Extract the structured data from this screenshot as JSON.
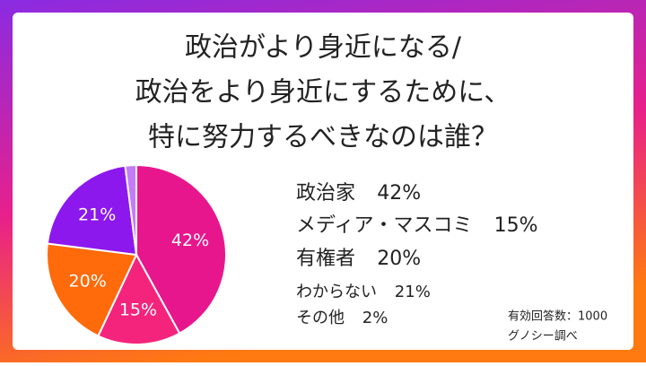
{
  "chart_data": {
    "type": "pie",
    "title_lines": [
      "政治がより身近になる/",
      "政治をより身近にするために、",
      "特に努力するべきなのは誰？"
    ],
    "categories": [
      "政治家",
      "メディア・マスコミ",
      "有権者",
      "わからない",
      "その他"
    ],
    "values": [
      42,
      15,
      20,
      21,
      2
    ],
    "value_labels": [
      "42%",
      "15%",
      "20%",
      "21%",
      "2%"
    ],
    "colors": [
      "#e8168c",
      "#f4247c",
      "#ff6a0a",
      "#8c18ee",
      "#c47cf6"
    ],
    "notes": [
      "有効回答数：1000",
      "グノシー調べ"
    ]
  }
}
